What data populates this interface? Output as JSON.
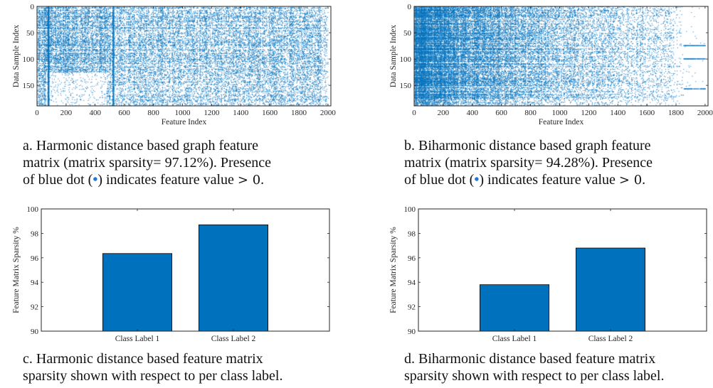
{
  "chart_data": [
    {
      "type": "scatter",
      "panel_id": "a",
      "xlabel": "Feature Index",
      "ylabel": "Data Sample Index",
      "xlim": [
        0,
        2020
      ],
      "ylim": [
        189,
        0
      ],
      "xticks": [
        0,
        200,
        400,
        600,
        800,
        1000,
        1200,
        1400,
        1600,
        1800,
        2000
      ],
      "yticks": [
        0,
        50,
        100,
        150
      ],
      "marker_color": "#0072bd",
      "matrix_sparsity_percent": 97.12
    },
    {
      "type": "scatter",
      "panel_id": "b",
      "xlabel": "Feature Index",
      "ylabel": "Data Sample Index",
      "xlim": [
        0,
        2020
      ],
      "ylim": [
        189,
        0
      ],
      "xticks": [
        0,
        200,
        400,
        600,
        800,
        1000,
        1200,
        1400,
        1600,
        1800,
        2000
      ],
      "yticks": [
        0,
        50,
        100,
        150
      ],
      "marker_color": "#0072bd",
      "matrix_sparsity_percent": 94.28
    },
    {
      "type": "bar",
      "panel_id": "c",
      "categories": [
        "Class Label 1",
        "Class Label 2"
      ],
      "values": [
        96.35,
        98.7
      ],
      "xlabel": "",
      "ylabel": "Feature Matrix Sparsity %",
      "ylim": [
        90,
        100
      ],
      "yticks": [
        90,
        92,
        94,
        96,
        98,
        100
      ],
      "bar_color": "#0072bd"
    },
    {
      "type": "bar",
      "panel_id": "d",
      "categories": [
        "Class Label 1",
        "Class Label 2"
      ],
      "values": [
        93.8,
        96.8
      ],
      "xlabel": "",
      "ylabel": "Feature Matrix Sparsity %",
      "ylim": [
        90,
        100
      ],
      "yticks": [
        90,
        92,
        94,
        96,
        98,
        100
      ],
      "bar_color": "#0072bd"
    }
  ],
  "captions": {
    "a": {
      "line1": "a.  Harmonic distance based graph feature",
      "line2a": "matrix (matrix sparsity= 97.12%). Presence",
      "line3a": "of blue dot (",
      "line3dot": "•",
      "line3b": ") indicates feature value ",
      "line3math": "> 0",
      "line3end": "."
    },
    "b": {
      "line1": "b. Biharmonic distance based graph feature",
      "line2a": "matrix (matrix sparsity= 94.28%). Presence",
      "line3a": "of blue dot (",
      "line3dot": "•",
      "line3b": ") indicates feature value ",
      "line3math": "> 0",
      "line3end": "."
    },
    "c": {
      "line1": "c.  Harmonic distance based feature matrix",
      "line2": "sparsity shown with respect to per class label."
    },
    "d": {
      "line1": "d. Biharmonic distance based feature matrix",
      "line2": "sparsity shown with respect to per class label."
    }
  }
}
